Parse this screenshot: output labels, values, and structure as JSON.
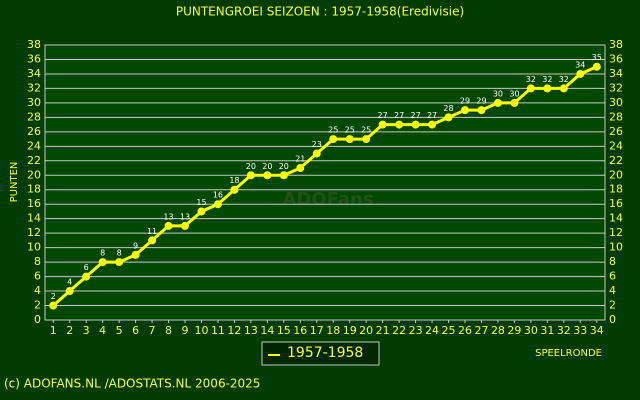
{
  "chart_data": {
    "type": "line",
    "title": "PUNTENGROEI SEIZOEN : 1957-1958(Eredivisie)",
    "y_label": "PUNTEN",
    "x_label": "SPEELRONDE",
    "watermark": "ADOFans",
    "footer": "(c) ADOFANS.NL /ADOSTATS.NL 2006-2025",
    "x": [
      1,
      2,
      3,
      4,
      5,
      6,
      7,
      8,
      9,
      10,
      11,
      12,
      13,
      14,
      15,
      16,
      17,
      18,
      19,
      20,
      21,
      22,
      23,
      24,
      25,
      26,
      27,
      28,
      29,
      30,
      31,
      32,
      33,
      34
    ],
    "series": [
      {
        "name": "1957-1958",
        "color": "#ffff00",
        "values": [
          2,
          4,
          6,
          8,
          8,
          9,
          11,
          13,
          13,
          15,
          16,
          18,
          20,
          20,
          20,
          21,
          23,
          25,
          25,
          25,
          27,
          27,
          27,
          27,
          28,
          29,
          29,
          30,
          30,
          32,
          32,
          32,
          34,
          35
        ]
      }
    ],
    "xlim": [
      0.5,
      34.5
    ],
    "xticks": [
      1,
      2,
      3,
      4,
      5,
      6,
      7,
      8,
      9,
      10,
      11,
      12,
      13,
      14,
      15,
      16,
      17,
      18,
      19,
      20,
      21,
      22,
      23,
      24,
      25,
      26,
      27,
      28,
      29,
      30,
      31,
      32,
      33,
      34
    ],
    "ylim": [
      0,
      38
    ],
    "yticks": [
      0,
      2,
      4,
      6,
      8,
      10,
      12,
      14,
      16,
      18,
      20,
      22,
      24,
      26,
      28,
      30,
      32,
      34,
      36,
      38
    ],
    "grid": true
  }
}
